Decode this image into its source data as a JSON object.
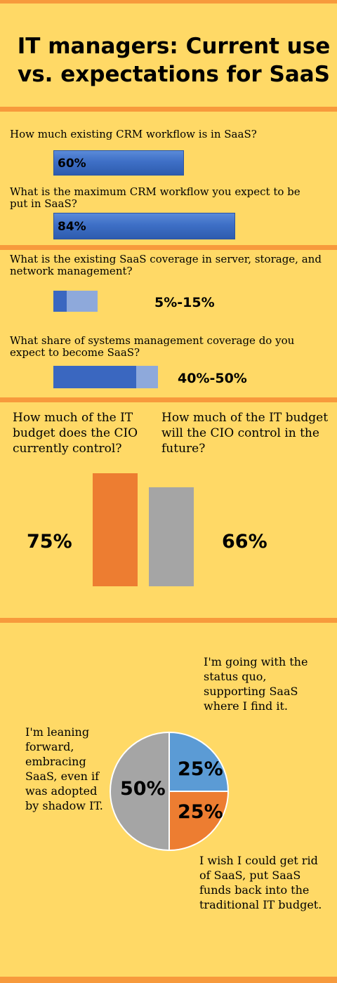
{
  "title": "IT managers: Current use vs. expectations for SaaS",
  "crm": {
    "q1": "How much existing CRM workflow is in SaaS?",
    "q1_value": "60%",
    "q2": "What is the maximum CRM workflow you expect to be put in SaaS?",
    "q2_value": "84%"
  },
  "coverage": {
    "q1": "What is the existing SaaS coverage in server, storage, and network management?",
    "q1_value": "5%-15%",
    "q2": "What share of systems management coverage do you expect to become SaaS?",
    "q2_value": "40%-50%"
  },
  "budget": {
    "q1": "How much of the IT budget does the CIO currently control?",
    "q2": "How much of the IT budget will the CIO control in the future?",
    "v1": "75%",
    "v2": "66%"
  },
  "attitudes": {
    "quote_status_quo": "I'm going with the status quo, supporting SaaS where I find it.",
    "quote_leaning": "I'm leaning forward, embracing SaaS, even if was adopted by shadow IT.",
    "quote_rid": "I wish I could get rid of SaaS, put SaaS funds back into the traditional IT budget.",
    "pct_status_quo": "25%",
    "pct_rid": "25%",
    "pct_leaning": "50%"
  },
  "colors": {
    "background": "#FFD966",
    "rule": "#F79A3C",
    "blue": "#3E6FC6",
    "light_blue": "#8EA9DB",
    "orange": "#ED7D31",
    "gray": "#A5A5A5",
    "pie_blue": "#5B9BD5"
  },
  "chart_data": [
    {
      "type": "bar",
      "orientation": "horizontal",
      "categories": [
        "How much existing CRM workflow is in SaaS?",
        "What is the maximum CRM workflow you expect to be put in SaaS?"
      ],
      "values": [
        60,
        84
      ],
      "data_labels": [
        "60%",
        "84%"
      ]
    },
    {
      "type": "bar",
      "orientation": "horizontal",
      "stacked": true,
      "categories": [
        "What is the existing SaaS coverage in server, storage, and network management?",
        "What share of systems management coverage do you expect to become SaaS?"
      ],
      "ranges": [
        [
          5,
          15
        ],
        [
          40,
          50
        ]
      ],
      "data_labels": [
        "5%-15%",
        "40%-50%"
      ]
    },
    {
      "type": "bar",
      "categories": [
        "How much of the IT budget does the CIO currently control?",
        "How much of the IT budget will the CIO control in the future?"
      ],
      "values": [
        75,
        66
      ],
      "data_labels": [
        "75%",
        "66%"
      ],
      "colors": [
        "#ED7D31",
        "#A5A5A5"
      ]
    },
    {
      "type": "pie",
      "labels": [
        "I'm going with the status quo, supporting SaaS where I find it.",
        "I wish I could get rid of SaaS, put SaaS funds back into the traditional IT budget.",
        "I'm leaning forward, embracing SaaS, even if was adopted by shadow IT."
      ],
      "values": [
        25,
        25,
        50
      ],
      "data_labels": [
        "25%",
        "25%",
        "50%"
      ],
      "colors": [
        "#5B9BD5",
        "#ED7D31",
        "#A5A5A5"
      ]
    }
  ]
}
